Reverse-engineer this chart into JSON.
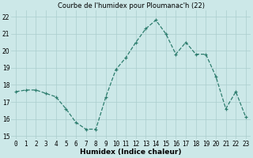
{
  "x": [
    0,
    1,
    2,
    3,
    4,
    5,
    6,
    7,
    8,
    9,
    10,
    11,
    12,
    13,
    14,
    15,
    16,
    17,
    18,
    19,
    20,
    21,
    22,
    23
  ],
  "y": [
    17.6,
    17.7,
    17.7,
    17.5,
    17.3,
    16.6,
    15.8,
    15.4,
    15.4,
    17.3,
    18.9,
    19.6,
    20.5,
    21.3,
    21.8,
    21.0,
    19.8,
    20.5,
    19.8,
    19.8,
    18.5,
    16.6,
    17.6,
    16.1
  ],
  "title": "Courbe de l'humidex pour Ploumanac'h (22)",
  "xlabel": "Humidex (Indice chaleur)",
  "ylabel": "",
  "xlim": [
    -0.5,
    23.5
  ],
  "ylim": [
    14.8,
    22.4
  ],
  "yticks": [
    15,
    16,
    17,
    18,
    19,
    20,
    21,
    22
  ],
  "xticks": [
    0,
    1,
    2,
    3,
    4,
    5,
    6,
    7,
    8,
    9,
    10,
    11,
    12,
    13,
    14,
    15,
    16,
    17,
    18,
    19,
    20,
    21,
    22,
    23
  ],
  "line_color": "#2d7d6e",
  "marker": "+",
  "bg_color": "#cce8e8",
  "grid_color": "#aacece",
  "title_fontsize": 6,
  "label_fontsize": 6.5,
  "tick_fontsize": 5.5
}
